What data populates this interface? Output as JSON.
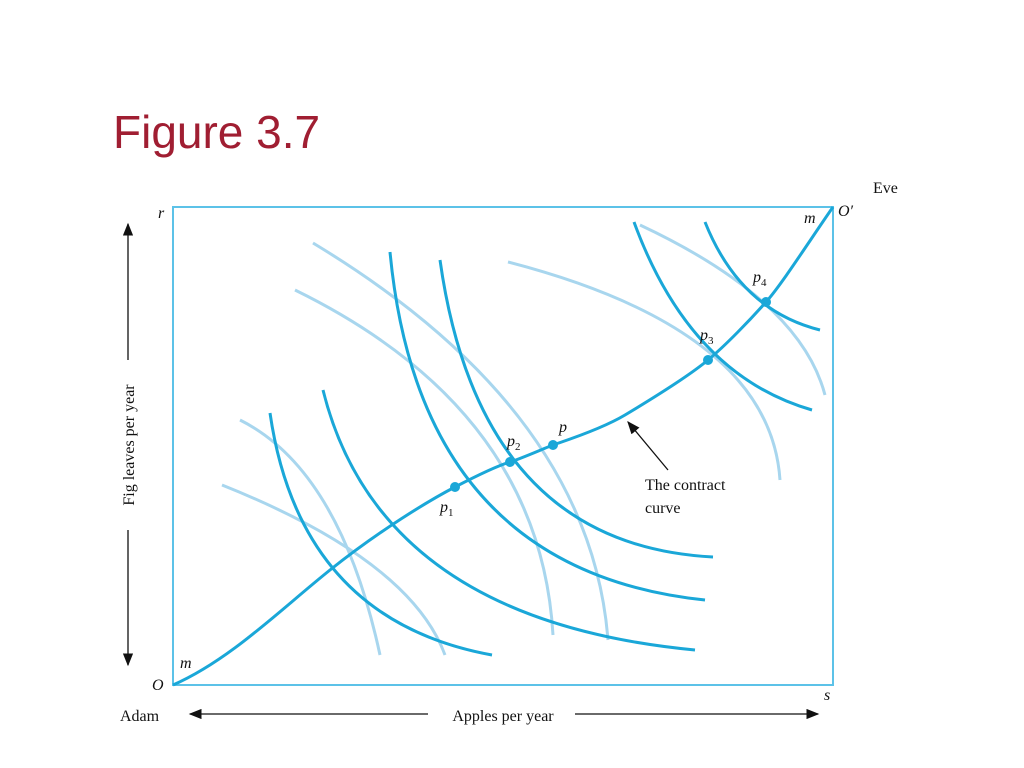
{
  "header": {
    "title": "Figure 3.7"
  },
  "diagram": {
    "corner_labels": {
      "top_left": "r",
      "top_right": "O′",
      "bottom_left": "O",
      "bottom_right": "s"
    },
    "owners": {
      "top": "Eve",
      "bottom": "Adam"
    },
    "axes": {
      "x": "Apples per year",
      "y": "Fig leaves per year"
    },
    "curve_ends": {
      "bottom": "m",
      "top": "m"
    },
    "points": [
      {
        "label": "p",
        "subscript": "1"
      },
      {
        "label": "p",
        "subscript": "2"
      },
      {
        "label": "p"
      },
      {
        "label": "p",
        "subscript": "3"
      },
      {
        "label": "p",
        "subscript": "4"
      }
    ],
    "annotation": {
      "line1": "The contract",
      "line2": "curve"
    }
  }
}
